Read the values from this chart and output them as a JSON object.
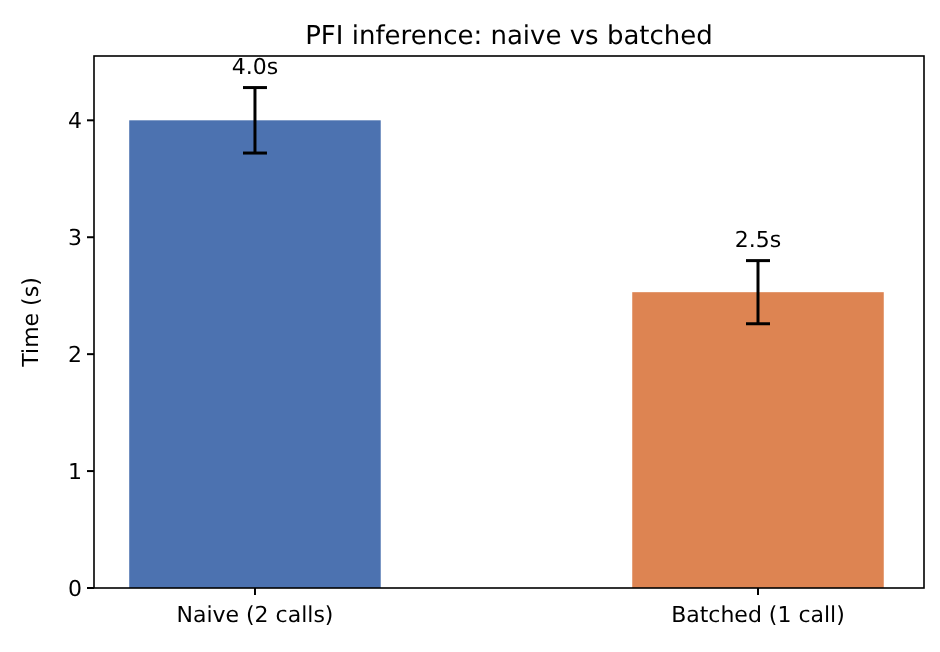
{
  "chart_data": {
    "type": "bar",
    "title": "PFI inference: naive vs batched",
    "ylabel": "Time (s)",
    "categories": [
      "Naive (2 calls)",
      "Batched (1 call)"
    ],
    "values": [
      4.0,
      2.53
    ],
    "colors": [
      "#4c72b0",
      "#dd8452"
    ],
    "errors": [
      0.28,
      0.27
    ],
    "value_labels": [
      "4.0s",
      "2.5s"
    ],
    "ylim": [
      0,
      4.55
    ],
    "yticks": [
      0,
      1,
      2,
      3,
      4
    ],
    "grid": false
  }
}
